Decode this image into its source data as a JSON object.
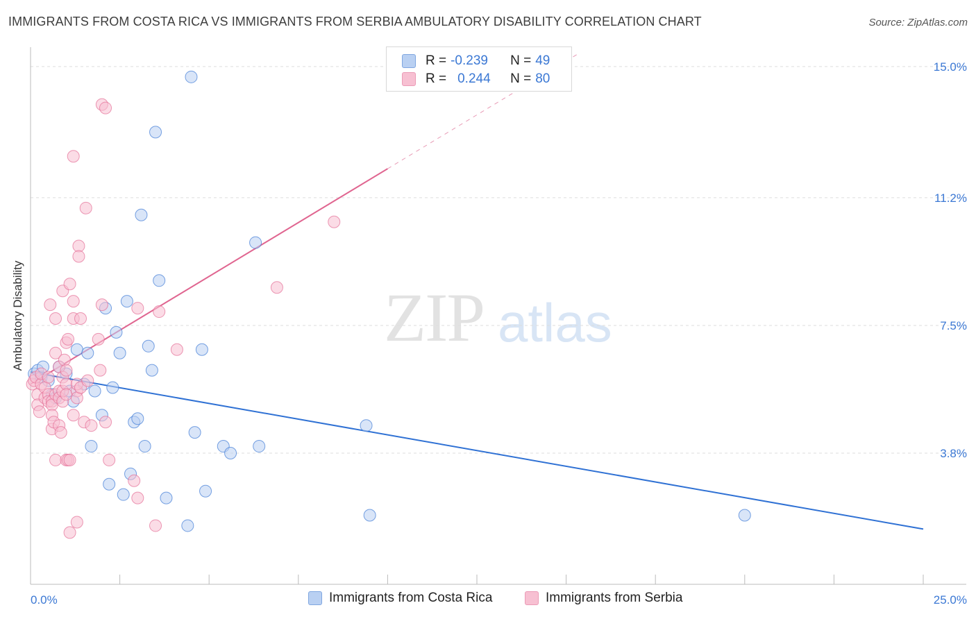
{
  "title": "IMMIGRANTS FROM COSTA RICA VS IMMIGRANTS FROM SERBIA AMBULATORY DISABILITY CORRELATION CHART",
  "source": "Source: ZipAtlas.com",
  "watermark": {
    "zip": "ZIP",
    "atlas": "atlas"
  },
  "colors": {
    "blue": "#3f7ad6",
    "blue_fill": "#b9d0f2",
    "pink": "#e46d96",
    "pink_fill": "#f7c0d2",
    "value_text": "#3b78d4",
    "grid": "#dddddd"
  },
  "legend": {
    "rows": [
      {
        "r_label": "R =",
        "r_value": "-0.239",
        "n_label": "N =",
        "n_value": "49"
      },
      {
        "r_label": "R =",
        "r_value": "0.244",
        "n_label": "N =",
        "n_value": "80"
      }
    ]
  },
  "bottom_legend": {
    "blue_label": "Immigrants from Costa Rica",
    "pink_label": "Immigrants from Serbia"
  },
  "chart_data": {
    "type": "scatter",
    "title": "IMMIGRANTS FROM COSTA RICA VS IMMIGRANTS FROM SERBIA AMBULATORY DISABILITY CORRELATION CHART",
    "xlabel": "",
    "ylabel": "Ambulatory Disability",
    "xlim": [
      0,
      25
    ],
    "ylim": [
      0,
      15.4
    ],
    "x_tick_labels": [
      "0.0%",
      "25.0%"
    ],
    "y_ticks": [
      3.8,
      7.5,
      11.2,
      15.0
    ],
    "y_tick_labels": [
      "3.8%",
      "7.5%",
      "11.2%",
      "15.0%"
    ],
    "grid": true,
    "series": [
      {
        "name": "Immigrants from Costa Rica",
        "color": "blue",
        "R": -0.239,
        "N": 49,
        "trend": {
          "x0": 0,
          "y0": 6.15,
          "x1": 25,
          "y1": 1.6,
          "dashed_from": null
        },
        "points": [
          [
            0.1,
            6.1
          ],
          [
            0.2,
            6.2
          ],
          [
            0.3,
            6.0
          ],
          [
            0.35,
            6.3
          ],
          [
            0.5,
            5.9
          ],
          [
            0.6,
            5.5
          ],
          [
            0.7,
            5.4
          ],
          [
            0.8,
            6.3
          ],
          [
            1.0,
            6.1
          ],
          [
            1.1,
            5.6
          ],
          [
            1.2,
            5.3
          ],
          [
            1.3,
            6.8
          ],
          [
            1.5,
            5.8
          ],
          [
            1.6,
            6.7
          ],
          [
            1.7,
            4.0
          ],
          [
            1.8,
            5.6
          ],
          [
            2.0,
            4.9
          ],
          [
            2.1,
            8.0
          ],
          [
            2.2,
            2.9
          ],
          [
            2.3,
            5.7
          ],
          [
            2.4,
            7.3
          ],
          [
            2.5,
            6.7
          ],
          [
            2.6,
            2.6
          ],
          [
            2.7,
            8.2
          ],
          [
            2.8,
            3.2
          ],
          [
            2.9,
            4.7
          ],
          [
            3.0,
            4.8
          ],
          [
            3.1,
            10.7
          ],
          [
            3.2,
            4.0
          ],
          [
            3.3,
            6.9
          ],
          [
            3.4,
            6.2
          ],
          [
            3.5,
            13.1
          ],
          [
            3.6,
            8.8
          ],
          [
            3.8,
            2.5
          ],
          [
            4.4,
            1.7
          ],
          [
            4.5,
            14.7
          ],
          [
            4.6,
            4.4
          ],
          [
            4.8,
            6.8
          ],
          [
            4.9,
            2.7
          ],
          [
            5.4,
            4.0
          ],
          [
            5.6,
            3.8
          ],
          [
            6.3,
            9.9
          ],
          [
            6.4,
            4.0
          ],
          [
            9.4,
            4.6
          ],
          [
            9.5,
            2.0
          ],
          [
            20.0,
            2.0
          ]
        ]
      },
      {
        "name": "Immigrants from Serbia",
        "color": "pink",
        "R": 0.244,
        "N": 80,
        "trend": {
          "x0": 0,
          "y0": 5.8,
          "x1": 25,
          "y1": 21.4,
          "solid_until_x": 10
        },
        "points": [
          [
            0.05,
            5.8
          ],
          [
            0.1,
            5.9
          ],
          [
            0.15,
            6.0
          ],
          [
            0.2,
            5.5
          ],
          [
            0.2,
            5.2
          ],
          [
            0.25,
            5.0
          ],
          [
            0.3,
            5.8
          ],
          [
            0.3,
            6.1
          ],
          [
            0.4,
            5.4
          ],
          [
            0.4,
            5.7
          ],
          [
            0.5,
            5.5
          ],
          [
            0.5,
            6.0
          ],
          [
            0.5,
            5.3
          ],
          [
            0.55,
            8.1
          ],
          [
            0.6,
            5.3
          ],
          [
            0.6,
            5.2
          ],
          [
            0.6,
            4.5
          ],
          [
            0.6,
            4.9
          ],
          [
            0.65,
            4.7
          ],
          [
            0.7,
            5.5
          ],
          [
            0.7,
            3.6
          ],
          [
            0.7,
            7.7
          ],
          [
            0.7,
            6.7
          ],
          [
            0.8,
            5.6
          ],
          [
            0.8,
            5.4
          ],
          [
            0.8,
            6.3
          ],
          [
            0.8,
            4.6
          ],
          [
            0.85,
            4.4
          ],
          [
            0.9,
            8.5
          ],
          [
            0.9,
            5.3
          ],
          [
            0.9,
            5.6
          ],
          [
            0.9,
            6.0
          ],
          [
            0.95,
            6.5
          ],
          [
            1.0,
            6.2
          ],
          [
            1.0,
            7.0
          ],
          [
            1.0,
            3.6
          ],
          [
            1.0,
            5.8
          ],
          [
            1.0,
            5.5
          ],
          [
            1.05,
            7.1
          ],
          [
            1.05,
            3.6
          ],
          [
            1.1,
            1.5
          ],
          [
            1.1,
            8.7
          ],
          [
            1.1,
            3.6
          ],
          [
            1.2,
            8.2
          ],
          [
            1.2,
            7.7
          ],
          [
            1.2,
            12.4
          ],
          [
            1.2,
            4.9
          ],
          [
            1.3,
            1.8
          ],
          [
            1.3,
            5.6
          ],
          [
            1.3,
            5.8
          ],
          [
            1.3,
            5.4
          ],
          [
            1.35,
            9.8
          ],
          [
            1.35,
            9.5
          ],
          [
            1.4,
            7.7
          ],
          [
            1.4,
            5.7
          ],
          [
            1.5,
            4.7
          ],
          [
            1.55,
            10.9
          ],
          [
            1.6,
            5.9
          ],
          [
            1.7,
            4.6
          ],
          [
            1.9,
            7.1
          ],
          [
            1.95,
            6.2
          ],
          [
            2.0,
            8.1
          ],
          [
            2.0,
            13.9
          ],
          [
            2.1,
            4.7
          ],
          [
            2.1,
            13.8
          ],
          [
            2.2,
            3.6
          ],
          [
            2.9,
            3.0
          ],
          [
            3.0,
            8.0
          ],
          [
            3.0,
            2.5
          ],
          [
            3.5,
            1.7
          ],
          [
            3.6,
            7.9
          ],
          [
            4.1,
            6.8
          ],
          [
            6.9,
            8.6
          ],
          [
            8.5,
            10.5
          ]
        ]
      }
    ]
  }
}
